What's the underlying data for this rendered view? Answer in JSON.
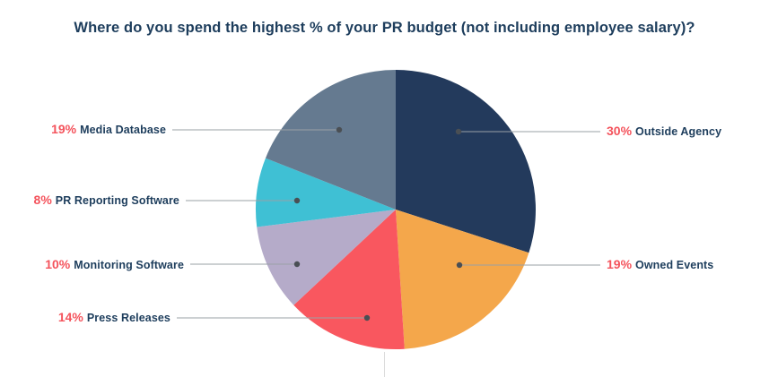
{
  "chart_data": {
    "type": "pie",
    "title": "Where do you spend the highest % of your PR budget (not including employee salary)?",
    "unit": "%",
    "direction": "clockwise",
    "start_angle_deg": -90,
    "legend_position": "callouts",
    "slices": [
      {
        "label": "Outside Agency",
        "value": 30,
        "percent_label": "30%",
        "color": "#233a5c",
        "side": "right"
      },
      {
        "label": "Owned Events",
        "value": 19,
        "percent_label": "19%",
        "color": "#f4a74b",
        "side": "right"
      },
      {
        "label": "Press Releases",
        "value": 14,
        "percent_label": "14%",
        "color": "#f9575f",
        "side": "left"
      },
      {
        "label": "Monitoring Software",
        "value": 10,
        "percent_label": "10%",
        "color": "#b5abc9",
        "side": "left"
      },
      {
        "label": "PR Reporting Software",
        "value": 8,
        "percent_label": "8%",
        "color": "#3fc0d4",
        "side": "left"
      },
      {
        "label": "Media Database",
        "value": 19,
        "percent_label": "19%",
        "color": "#657a90",
        "side": "left"
      }
    ]
  },
  "style": {
    "background": "#ffffff",
    "title_color": "#1d3d5c",
    "percent_color": "#f4535c",
    "label_color": "#1d3d5c",
    "leader_line_color": "#9aa0a6",
    "leader_dot_color": "#4a4f54"
  }
}
